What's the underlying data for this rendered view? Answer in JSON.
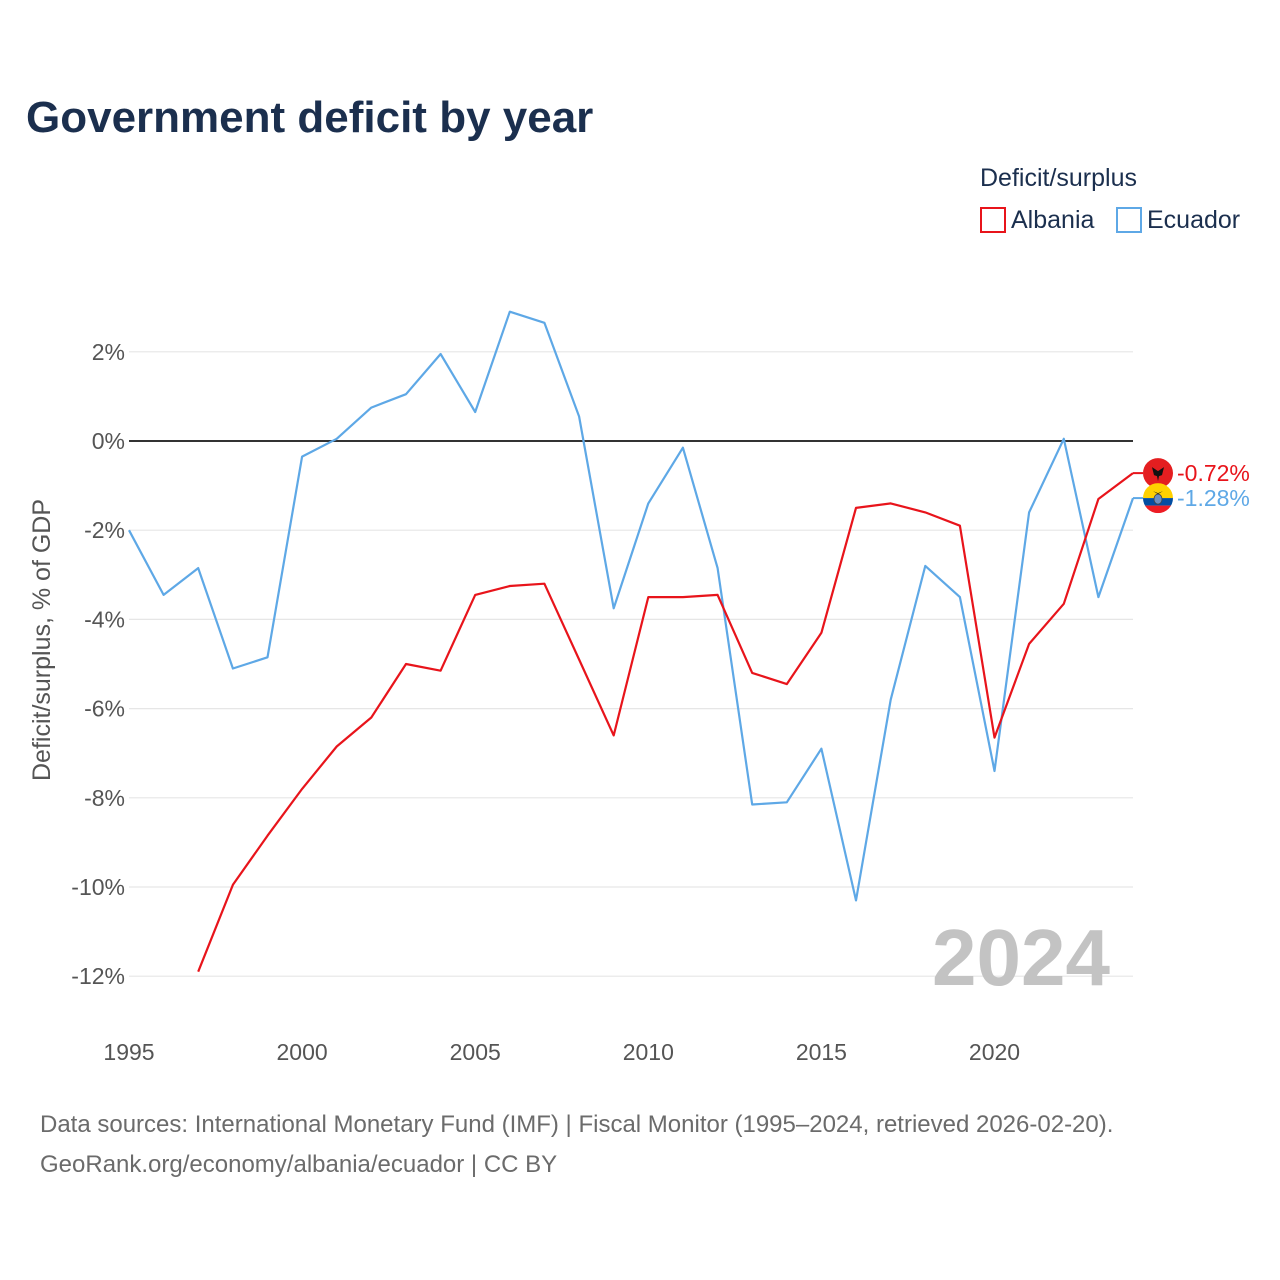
{
  "title": "Government deficit by year",
  "legend": {
    "title": "Deficit/surplus",
    "items": [
      {
        "label": "Albania",
        "color": "#e8141b"
      },
      {
        "label": "Ecuador",
        "color": "#5ea8e6"
      }
    ]
  },
  "year_watermark": "2024",
  "source": {
    "line1": "Data sources: International Monetary Fund (IMF) | Fiscal Monitor (1995–2024, retrieved 2026-02-20).",
    "line2": "GeoRank.org/economy/albania/ecuador | CC BY"
  },
  "chart_data": {
    "type": "line",
    "title": "Government deficit by year",
    "xlabel": "",
    "ylabel": "Deficit/surplus, % of GDP",
    "xlim": [
      1995,
      2024
    ],
    "ylim": [
      -13,
      3.5
    ],
    "x_ticks": [
      1995,
      2000,
      2005,
      2010,
      2015,
      2020
    ],
    "x_tick_labels": [
      "1995",
      "2000",
      "2005",
      "2010",
      "2015",
      "2020"
    ],
    "y_ticks": [
      2,
      0,
      -2,
      -4,
      -6,
      -8,
      -10,
      -12
    ],
    "y_tick_labels": [
      "2%",
      "0%",
      "-2%",
      "-4%",
      "-6%",
      "-8%",
      "-10%",
      "-12%"
    ],
    "grid": true,
    "zero_line": true,
    "legend_position": "top-right",
    "series": [
      {
        "name": "Albania",
        "color": "#e8141b",
        "end_label": "-0.72%",
        "x": [
          1997,
          1998,
          1999,
          2000,
          2001,
          2002,
          2003,
          2004,
          2005,
          2006,
          2007,
          2008,
          2009,
          2010,
          2011,
          2012,
          2013,
          2014,
          2015,
          2016,
          2017,
          2018,
          2019,
          2020,
          2021,
          2022,
          2023,
          2024
        ],
        "values": [
          -11.9,
          -9.95,
          -8.85,
          -7.8,
          -6.85,
          -6.2,
          -5.0,
          -5.15,
          -3.45,
          -3.25,
          -3.2,
          -4.9,
          -6.6,
          -3.5,
          -3.5,
          -3.45,
          -5.2,
          -5.45,
          -4.3,
          -1.5,
          -1.4,
          -1.6,
          -1.9,
          -6.65,
          -4.55,
          -3.65,
          -1.3,
          -0.72
        ]
      },
      {
        "name": "Ecuador",
        "color": "#5ea8e6",
        "end_label": "-1.28%",
        "x": [
          1995,
          1996,
          1997,
          1998,
          1999,
          2000,
          2001,
          2002,
          2003,
          2004,
          2005,
          2006,
          2007,
          2008,
          2009,
          2010,
          2011,
          2012,
          2013,
          2014,
          2015,
          2016,
          2017,
          2018,
          2019,
          2020,
          2021,
          2022,
          2023,
          2024
        ],
        "values": [
          -2.0,
          -3.45,
          -2.85,
          -5.1,
          -4.85,
          -0.35,
          0.05,
          0.75,
          1.05,
          1.95,
          0.65,
          2.9,
          2.65,
          0.55,
          -3.75,
          -1.4,
          -0.15,
          -2.85,
          -8.15,
          -8.1,
          -6.9,
          -10.3,
          -5.8,
          -2.8,
          -3.5,
          -7.4,
          -1.6,
          0.05,
          -3.5,
          -1.28
        ]
      }
    ]
  }
}
